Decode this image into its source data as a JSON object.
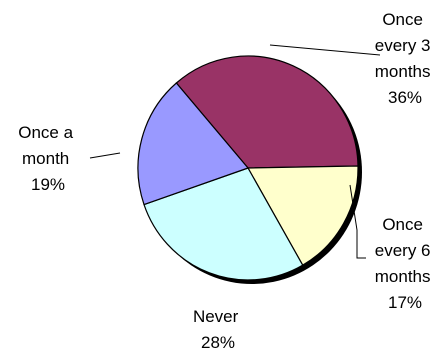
{
  "chart_data": {
    "type": "pie",
    "categories": [
      "Once every 3 months",
      "Once every 6 months",
      "Never",
      "Once a month"
    ],
    "values": [
      36,
      17,
      28,
      19
    ],
    "labels": [
      {
        "lines": [
          "Once",
          "every 3",
          "months",
          "36%"
        ]
      },
      {
        "lines": [
          "Once",
          "every 6",
          "months",
          "17%"
        ]
      },
      {
        "lines": [
          "Never",
          "28%"
        ]
      },
      {
        "lines": [
          "Once a",
          "month",
          "19%"
        ]
      }
    ],
    "colors": [
      "#993366",
      "#FFFFCC",
      "#CCFFFF",
      "#9999FF"
    ],
    "legend": "none"
  }
}
